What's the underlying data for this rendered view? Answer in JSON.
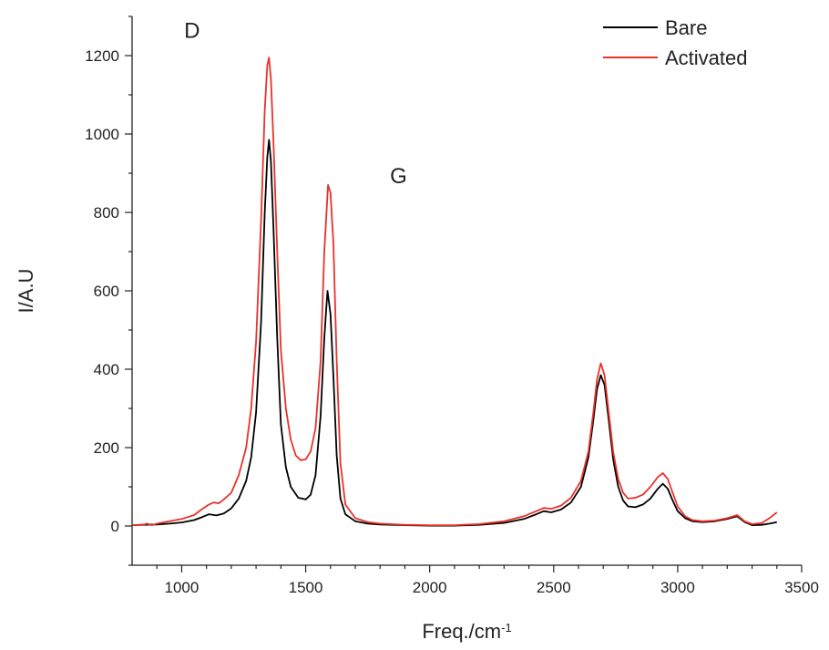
{
  "chart_data": {
    "type": "line",
    "title": "",
    "xlabel": "Freq./cm",
    "xlabel_superscript": "-1",
    "ylabel": "I/A.U",
    "xlim": [
      800,
      3500
    ],
    "ylim": [
      -100,
      1300
    ],
    "x_ticks": [
      1000,
      1500,
      2000,
      2500,
      3000,
      3500
    ],
    "y_ticks": [
      0,
      200,
      400,
      600,
      800,
      1000,
      1200
    ],
    "grid": false,
    "legend_position": "top-right",
    "annotations": [
      {
        "text": "D",
        "x": 1010,
        "y": 1245
      },
      {
        "text": "G",
        "x": 1840,
        "y": 875
      }
    ],
    "series": [
      {
        "name": "Bare",
        "color": "#000000",
        "points": [
          [
            800,
            2
          ],
          [
            850,
            3
          ],
          [
            900,
            4
          ],
          [
            950,
            6
          ],
          [
            1000,
            9
          ],
          [
            1050,
            15
          ],
          [
            1080,
            22
          ],
          [
            1110,
            30
          ],
          [
            1140,
            27
          ],
          [
            1170,
            32
          ],
          [
            1200,
            45
          ],
          [
            1230,
            70
          ],
          [
            1260,
            115
          ],
          [
            1280,
            175
          ],
          [
            1300,
            290
          ],
          [
            1320,
            520
          ],
          [
            1335,
            800
          ],
          [
            1345,
            940
          ],
          [
            1352,
            985
          ],
          [
            1360,
            930
          ],
          [
            1370,
            760
          ],
          [
            1385,
            480
          ],
          [
            1400,
            260
          ],
          [
            1420,
            150
          ],
          [
            1440,
            100
          ],
          [
            1470,
            72
          ],
          [
            1500,
            68
          ],
          [
            1520,
            80
          ],
          [
            1540,
            130
          ],
          [
            1560,
            280
          ],
          [
            1575,
            480
          ],
          [
            1588,
            600
          ],
          [
            1600,
            540
          ],
          [
            1612,
            380
          ],
          [
            1625,
            180
          ],
          [
            1640,
            70
          ],
          [
            1660,
            30
          ],
          [
            1700,
            12
          ],
          [
            1750,
            6
          ],
          [
            1800,
            4
          ],
          [
            1900,
            2
          ],
          [
            2000,
            1
          ],
          [
            2100,
            1
          ],
          [
            2200,
            3
          ],
          [
            2300,
            8
          ],
          [
            2380,
            18
          ],
          [
            2430,
            30
          ],
          [
            2460,
            38
          ],
          [
            2490,
            35
          ],
          [
            2530,
            42
          ],
          [
            2570,
            60
          ],
          [
            2610,
            100
          ],
          [
            2640,
            175
          ],
          [
            2660,
            270
          ],
          [
            2675,
            350
          ],
          [
            2690,
            385
          ],
          [
            2705,
            360
          ],
          [
            2720,
            280
          ],
          [
            2740,
            170
          ],
          [
            2760,
            100
          ],
          [
            2780,
            65
          ],
          [
            2800,
            50
          ],
          [
            2830,
            48
          ],
          [
            2860,
            55
          ],
          [
            2890,
            70
          ],
          [
            2920,
            95
          ],
          [
            2940,
            108
          ],
          [
            2960,
            95
          ],
          [
            2980,
            65
          ],
          [
            3000,
            38
          ],
          [
            3030,
            20
          ],
          [
            3060,
            12
          ],
          [
            3100,
            10
          ],
          [
            3150,
            12
          ],
          [
            3200,
            18
          ],
          [
            3240,
            25
          ],
          [
            3270,
            10
          ],
          [
            3300,
            2
          ],
          [
            3340,
            3
          ],
          [
            3370,
            6
          ],
          [
            3400,
            10
          ]
        ]
      },
      {
        "name": "Activated",
        "color": "#e8322b",
        "points": [
          [
            800,
            2
          ],
          [
            850,
            4
          ],
          [
            860,
            6
          ],
          [
            880,
            2
          ],
          [
            900,
            6
          ],
          [
            950,
            12
          ],
          [
            1000,
            18
          ],
          [
            1050,
            28
          ],
          [
            1080,
            42
          ],
          [
            1110,
            55
          ],
          [
            1130,
            60
          ],
          [
            1150,
            58
          ],
          [
            1170,
            68
          ],
          [
            1200,
            85
          ],
          [
            1230,
            130
          ],
          [
            1260,
            200
          ],
          [
            1280,
            300
          ],
          [
            1300,
            470
          ],
          [
            1320,
            780
          ],
          [
            1335,
            1060
          ],
          [
            1345,
            1175
          ],
          [
            1352,
            1195
          ],
          [
            1360,
            1140
          ],
          [
            1370,
            980
          ],
          [
            1385,
            700
          ],
          [
            1400,
            450
          ],
          [
            1420,
            300
          ],
          [
            1440,
            220
          ],
          [
            1460,
            180
          ],
          [
            1480,
            168
          ],
          [
            1500,
            170
          ],
          [
            1520,
            190
          ],
          [
            1540,
            250
          ],
          [
            1560,
            420
          ],
          [
            1575,
            700
          ],
          [
            1590,
            870
          ],
          [
            1600,
            850
          ],
          [
            1612,
            720
          ],
          [
            1625,
            420
          ],
          [
            1640,
            160
          ],
          [
            1660,
            55
          ],
          [
            1700,
            20
          ],
          [
            1750,
            10
          ],
          [
            1800,
            6
          ],
          [
            1900,
            3
          ],
          [
            2000,
            2
          ],
          [
            2100,
            2
          ],
          [
            2200,
            5
          ],
          [
            2300,
            12
          ],
          [
            2380,
            25
          ],
          [
            2430,
            38
          ],
          [
            2460,
            46
          ],
          [
            2490,
            44
          ],
          [
            2530,
            52
          ],
          [
            2570,
            72
          ],
          [
            2610,
            115
          ],
          [
            2640,
            190
          ],
          [
            2660,
            290
          ],
          [
            2675,
            375
          ],
          [
            2690,
            415
          ],
          [
            2705,
            385
          ],
          [
            2720,
            300
          ],
          [
            2740,
            190
          ],
          [
            2760,
            120
          ],
          [
            2780,
            85
          ],
          [
            2800,
            70
          ],
          [
            2830,
            72
          ],
          [
            2860,
            80
          ],
          [
            2890,
            100
          ],
          [
            2920,
            125
          ],
          [
            2940,
            135
          ],
          [
            2960,
            120
          ],
          [
            2980,
            85
          ],
          [
            3000,
            50
          ],
          [
            3030,
            25
          ],
          [
            3060,
            15
          ],
          [
            3100,
            12
          ],
          [
            3150,
            14
          ],
          [
            3200,
            20
          ],
          [
            3240,
            28
          ],
          [
            3270,
            12
          ],
          [
            3300,
            5
          ],
          [
            3340,
            8
          ],
          [
            3370,
            20
          ],
          [
            3400,
            35
          ]
        ]
      }
    ]
  }
}
